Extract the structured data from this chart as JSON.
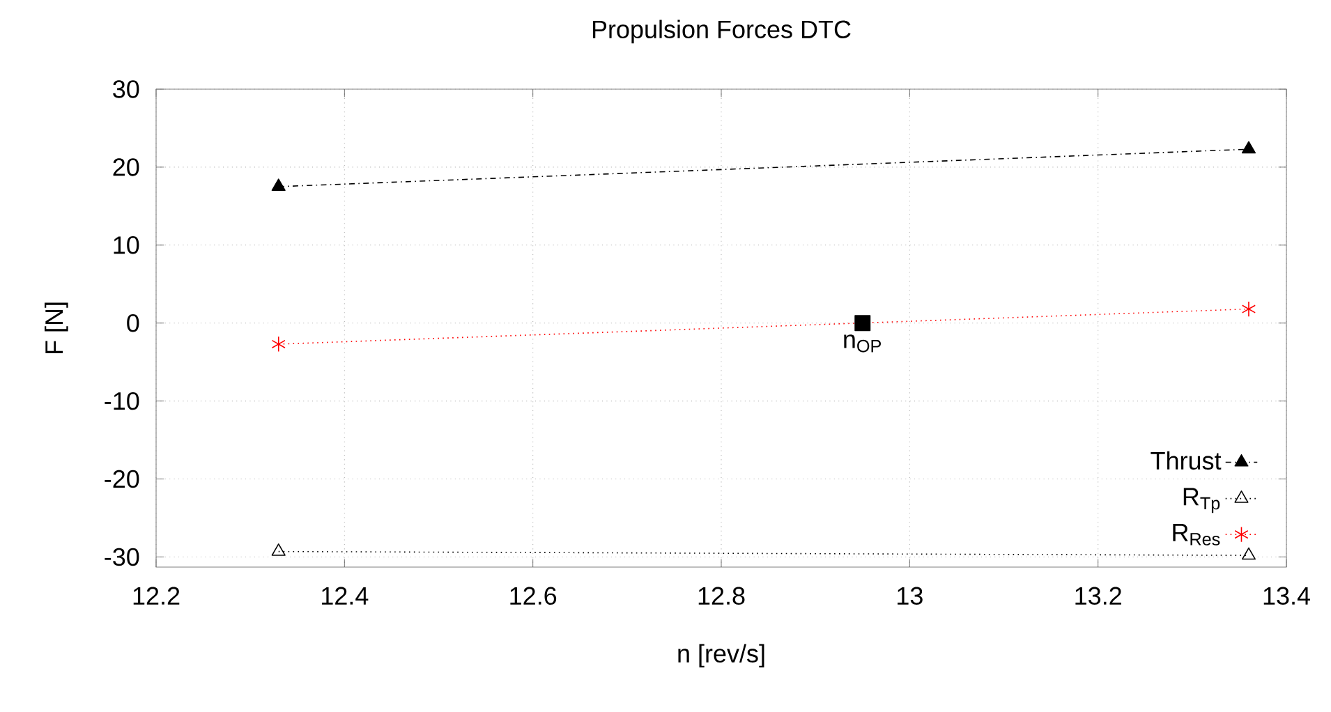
{
  "chart_data": {
    "type": "line",
    "title": "Propulsion Forces DTC",
    "xlabel": "n [rev/s]",
    "ylabel": "F [N]",
    "series": [
      {
        "name": "Thrust",
        "color": "#000000",
        "x": [
          12.33,
          13.36
        ],
        "values": [
          17.5,
          22.3
        ],
        "marker": "triangle",
        "line_style": "dashed"
      },
      {
        "name": "R$_{Tp}$",
        "color": "#000000",
        "x": [
          12.33,
          13.36
        ],
        "values": [
          -29.3,
          -29.8
        ],
        "marker": "triangle-open",
        "line_style": "dotted"
      },
      {
        "name": "R$_{Res}$",
        "color": "#ff0000",
        "x": [
          12.33,
          13.36
        ],
        "values": [
          -2.7,
          1.8
        ],
        "marker": "cross",
        "line_style": "dotted"
      },
      {
        "type": "scatter",
        "color": "#000000",
        "x": [
          12.95
        ],
        "values": [
          0
        ],
        "marker": "square"
      }
    ],
    "annotations": [
      {
        "text": "n$_{OP}$",
        "x": 12.95,
        "y": 0
      }
    ],
    "xlim": [
      12.2,
      13.4
    ],
    "ylim": [
      -31.3,
      30
    ],
    "xticks": [
      12.2,
      12.4,
      12.6,
      12.8,
      13,
      13.2,
      13.4
    ],
    "yticks": [
      -30,
      -20,
      -10,
      0,
      10,
      20,
      30
    ],
    "grid": true,
    "legend": "bottom right"
  }
}
